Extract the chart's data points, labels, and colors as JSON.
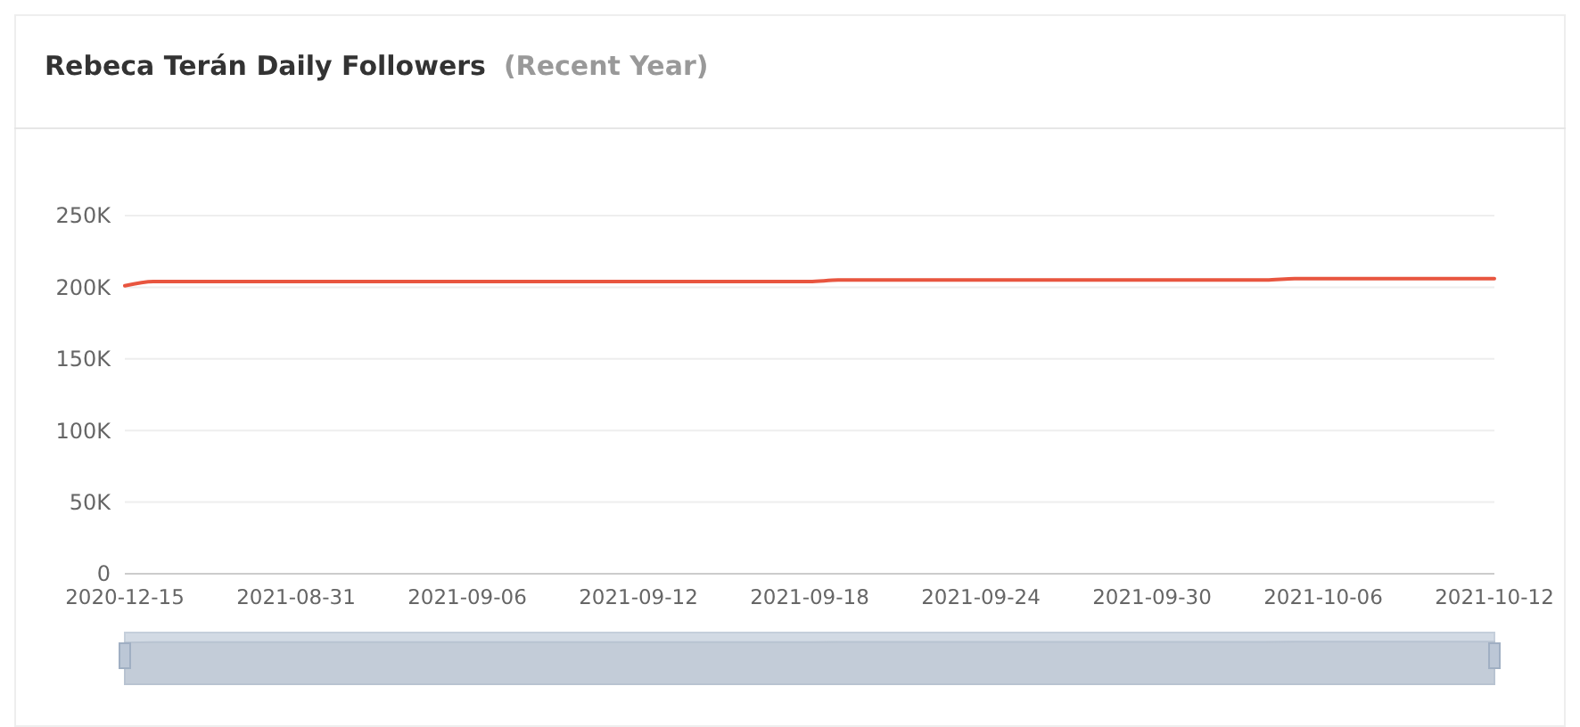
{
  "chart_data": {
    "type": "line",
    "title": "Rebeca Terán Daily Followers",
    "subtitle": "(Recent Year)",
    "categories": [
      "2020-12-15",
      null,
      null,
      null,
      null,
      null,
      "2021-08-31",
      null,
      null,
      null,
      null,
      null,
      "2021-09-06",
      null,
      null,
      null,
      null,
      null,
      "2021-09-12",
      null,
      null,
      null,
      null,
      null,
      "2021-09-18",
      null,
      null,
      null,
      null,
      null,
      "2021-09-24",
      null,
      null,
      null,
      null,
      null,
      "2021-09-30",
      null,
      null,
      null,
      null,
      null,
      "2021-10-06",
      null,
      null,
      null,
      null,
      null,
      "2021-10-12"
    ],
    "series": [
      {
        "color": "#e8553f",
        "values": [
          201000,
          204000,
          204000,
          204000,
          204000,
          204000,
          204000,
          204000,
          204000,
          204000,
          204000,
          204000,
          204000,
          204000,
          204000,
          204000,
          204000,
          204000,
          204000,
          204000,
          204000,
          204000,
          204000,
          204000,
          204000,
          205000,
          205000,
          205000,
          205000,
          205000,
          205000,
          205000,
          205000,
          205000,
          205000,
          205000,
          205000,
          205000,
          205000,
          205000,
          205000,
          206000,
          206000,
          206000,
          206000,
          206000,
          206000,
          206000,
          206000
        ]
      }
    ],
    "ylim": [
      0,
      250000
    ],
    "yticks": [
      {
        "value": 0,
        "label": "0"
      },
      {
        "value": 50000,
        "label": "50K"
      },
      {
        "value": 100000,
        "label": "100K"
      },
      {
        "value": 150000,
        "label": "150K"
      },
      {
        "value": 200000,
        "label": "200K"
      },
      {
        "value": 250000,
        "label": "250K"
      }
    ],
    "grid": "y",
    "marker": "none",
    "line_style": "solid"
  }
}
